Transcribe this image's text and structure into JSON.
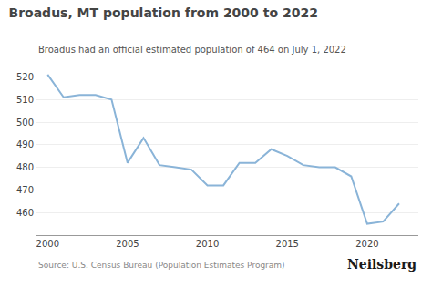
{
  "chart_data": {
    "type": "line",
    "title": "Broadus, MT population from 2000 to 2022",
    "subtitle": "Broadus had an official estimated population of 464 on July 1, 2022",
    "annotations": [
      "Source: U.S. Census Bureau (Population Estimates Program)",
      "Neilsberg"
    ],
    "x": [
      2000,
      2001,
      2002,
      2003,
      2004,
      2005,
      2006,
      2007,
      2008,
      2009,
      2010,
      2011,
      2012,
      2013,
      2014,
      2015,
      2016,
      2017,
      2018,
      2019,
      2020,
      2021,
      2022
    ],
    "values": [
      521,
      511,
      512,
      512,
      510,
      482,
      493,
      481,
      480,
      479,
      472,
      472,
      482,
      482,
      488,
      485,
      481,
      480,
      480,
      476,
      455,
      456,
      464
    ],
    "color": "#8ab4d8",
    "xlim": [
      1999.3,
      2023.2
    ],
    "xticks": [
      2000,
      2005,
      2010,
      2015,
      2020
    ],
    "ylim": [
      450,
      525
    ],
    "yticks": [
      460,
      470,
      480,
      490,
      500,
      510,
      520
    ],
    "grid": "y"
  }
}
